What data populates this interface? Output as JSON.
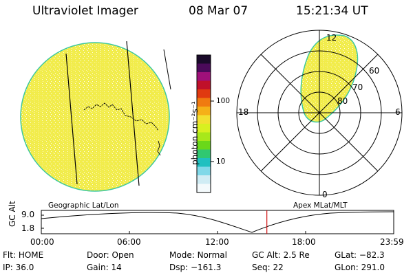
{
  "header": {
    "instrument": "Ultraviolet Imager",
    "date": "08 Mar 07",
    "time": "15:21:34 UT"
  },
  "colorbar": {
    "unit_label": "photon cm⁻²s⁻¹",
    "ticks": [
      "100",
      "10"
    ],
    "colors": [
      "#1a0a2a",
      "#4b0a5a",
      "#a0107a",
      "#c0102a",
      "#e03a10",
      "#f07a10",
      "#f5b018",
      "#f2e030",
      "#d8f020",
      "#a8e81a",
      "#6ad81a",
      "#30c870",
      "#20c0c0",
      "#80d8e8",
      "#d0ecf4",
      "#f4fafc"
    ]
  },
  "panels": {
    "left_caption": "Geographic Lat/Lon",
    "right_caption": "Apex MLat/MLT",
    "image_fill_color": "#f2ec4a",
    "image_edge_color": "#3cc8a0"
  },
  "polar_plot": {
    "ring_labels": [
      "60",
      "70",
      "80"
    ],
    "hour_labels": [
      "12",
      "18",
      "6",
      "0"
    ]
  },
  "altitude_plot": {
    "y_label": "GC Alt",
    "y_ticks": [
      "9.0",
      "1.8"
    ],
    "x_ticks": [
      "00:00",
      "06:00",
      "12:00",
      "18:00",
      "23:59"
    ],
    "current_time_hours": 15.36,
    "marker_color": "#d01010"
  },
  "footer": {
    "row1": [
      {
        "label": "Flt:",
        "value": "HOME"
      },
      {
        "label": "Door:",
        "value": "Open"
      },
      {
        "label": "Mode:",
        "value": "Normal"
      },
      {
        "label": "GC Alt:",
        "value": "2.5 Re"
      },
      {
        "label": "GLat:",
        "value": "−82.3"
      }
    ],
    "row2": [
      {
        "label": "IP:",
        "value": "36.0"
      },
      {
        "label": "Gain:",
        "value": "14"
      },
      {
        "label": "Dsp:",
        "value": "−161.3"
      },
      {
        "label": "Seq:",
        "value": "22"
      },
      {
        "label": "GLon:",
        "value": "291.0"
      }
    ]
  }
}
